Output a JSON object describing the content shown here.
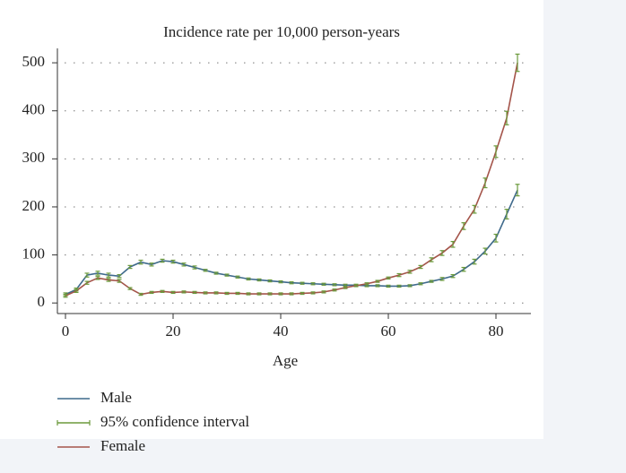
{
  "chart_data": {
    "type": "line",
    "title": "Incidence rate per 10,000 person-years",
    "x_label": "Age",
    "x": [
      0,
      2,
      4,
      6,
      8,
      10,
      12,
      14,
      16,
      18,
      20,
      22,
      24,
      26,
      28,
      30,
      32,
      34,
      36,
      38,
      40,
      42,
      44,
      46,
      48,
      50,
      52,
      54,
      56,
      58,
      60,
      62,
      64,
      66,
      68,
      70,
      72,
      74,
      76,
      78,
      80,
      82,
      84
    ],
    "series": [
      {
        "name": "Male",
        "color": "#3f6a8c",
        "values": [
          18,
          28,
          58,
          62,
          58,
          56,
          75,
          85,
          80,
          88,
          86,
          80,
          74,
          68,
          62,
          58,
          54,
          50,
          48,
          46,
          44,
          42,
          41,
          40,
          39,
          38,
          37,
          37,
          36,
          36,
          35,
          35,
          36,
          40,
          45,
          50,
          56,
          70,
          86,
          108,
          135,
          185,
          235
        ],
        "errors": [
          3,
          3,
          4,
          4,
          4,
          3,
          3,
          4,
          3,
          3,
          3,
          3,
          3,
          2,
          2,
          2,
          2,
          2,
          2,
          2,
          2,
          2,
          2,
          2,
          2,
          2,
          2,
          2,
          2,
          2,
          2,
          2,
          2,
          2,
          2,
          3,
          3,
          4,
          5,
          6,
          8,
          10,
          12
        ]
      },
      {
        "name": "Female",
        "color": "#a4544a",
        "values": [
          15,
          25,
          42,
          52,
          48,
          46,
          30,
          18,
          22,
          24,
          22,
          23,
          22,
          21,
          21,
          20,
          20,
          19,
          19,
          19,
          19,
          19,
          20,
          21,
          23,
          27,
          32,
          36,
          40,
          45,
          52,
          58,
          65,
          75,
          90,
          104,
          122,
          160,
          195,
          250,
          315,
          385,
          500
        ],
        "errors": [
          3,
          3,
          3,
          3,
          3,
          3,
          2,
          2,
          2,
          2,
          2,
          2,
          2,
          2,
          2,
          2,
          2,
          2,
          2,
          2,
          2,
          2,
          2,
          2,
          2,
          2,
          2,
          2,
          2,
          2,
          2,
          3,
          3,
          3,
          4,
          5,
          6,
          7,
          8,
          10,
          12,
          14,
          18
        ]
      }
    ],
    "ci_label": "95% confidence interval",
    "ci_color": "#6b9a3c",
    "xlim": [
      -1.5,
      86.5
    ],
    "xticks": [
      0,
      20,
      40,
      60,
      80
    ],
    "ylim": [
      -22,
      530
    ],
    "yticks": [
      0,
      100,
      200,
      300,
      400,
      500
    ],
    "grid": true
  }
}
